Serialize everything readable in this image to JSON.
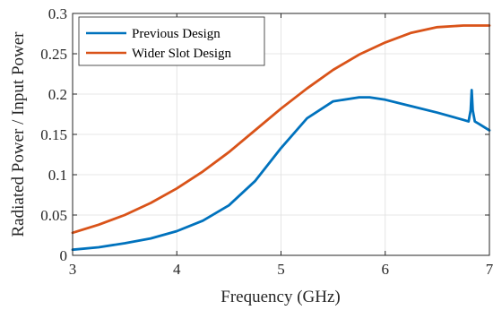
{
  "chart_data": {
    "type": "line",
    "title": "",
    "xlabel": "Frequency (GHz)",
    "ylabel": "Radiated Power / Input Power",
    "xlim": [
      3,
      7
    ],
    "ylim": [
      0,
      0.3
    ],
    "xticks": [
      "3",
      "4",
      "5",
      "6",
      "7"
    ],
    "yticks": [
      "0",
      "0.05",
      "0.1",
      "0.15",
      "0.2",
      "0.25",
      "0.3"
    ],
    "grid": true,
    "legend_position": "top-left",
    "series": [
      {
        "name": "Previous Design",
        "color": "#0072BD",
        "x": [
          3.0,
          3.25,
          3.5,
          3.75,
          4.0,
          4.25,
          4.5,
          4.75,
          5.0,
          5.25,
          5.5,
          5.75,
          5.85,
          6.0,
          6.25,
          6.5,
          6.75,
          6.8,
          6.82,
          6.83,
          6.84,
          6.86,
          6.9,
          7.0
        ],
        "y": [
          0.007,
          0.01,
          0.015,
          0.021,
          0.03,
          0.043,
          0.062,
          0.092,
          0.133,
          0.17,
          0.191,
          0.196,
          0.196,
          0.193,
          0.185,
          0.177,
          0.168,
          0.166,
          0.18,
          0.205,
          0.18,
          0.166,
          0.163,
          0.155
        ]
      },
      {
        "name": "Wider Slot Design",
        "color": "#D95319",
        "x": [
          3.0,
          3.25,
          3.5,
          3.75,
          4.0,
          4.25,
          4.5,
          4.75,
          5.0,
          5.25,
          5.5,
          5.75,
          6.0,
          6.25,
          6.5,
          6.75,
          7.0
        ],
        "y": [
          0.028,
          0.038,
          0.05,
          0.065,
          0.083,
          0.104,
          0.128,
          0.155,
          0.182,
          0.207,
          0.23,
          0.249,
          0.264,
          0.276,
          0.283,
          0.285,
          0.285
        ]
      }
    ]
  }
}
